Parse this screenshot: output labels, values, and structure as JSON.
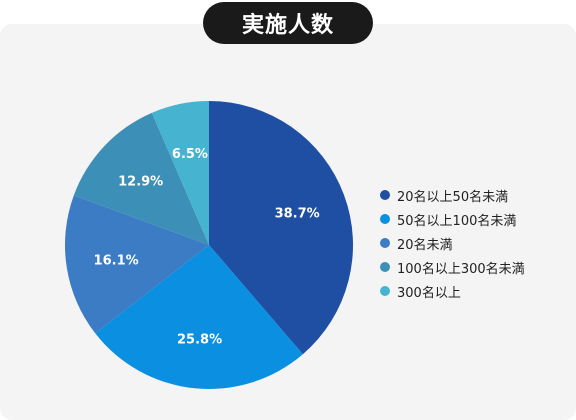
{
  "chart_data": {
    "type": "pie",
    "title": "実施人数",
    "series": [
      {
        "name": "20名以上50名未満",
        "value": 38.7,
        "label": "38.7%",
        "color": "#1f4fa3"
      },
      {
        "name": "50名以上100名未満",
        "value": 25.8,
        "label": "25.8%",
        "color": "#0b8fe0"
      },
      {
        "name": "20名未満",
        "value": 16.1,
        "label": "16.1%",
        "color": "#3b7cc4"
      },
      {
        "name": "100名以上300名未満",
        "value": 12.9,
        "label": "12.9%",
        "color": "#3c8fb7"
      },
      {
        "name": "300名以上",
        "value": 6.5,
        "label": "6.5%",
        "color": "#46b4d0"
      }
    ],
    "legend_position": "right",
    "start_angle": "top",
    "direction": "clockwise"
  }
}
